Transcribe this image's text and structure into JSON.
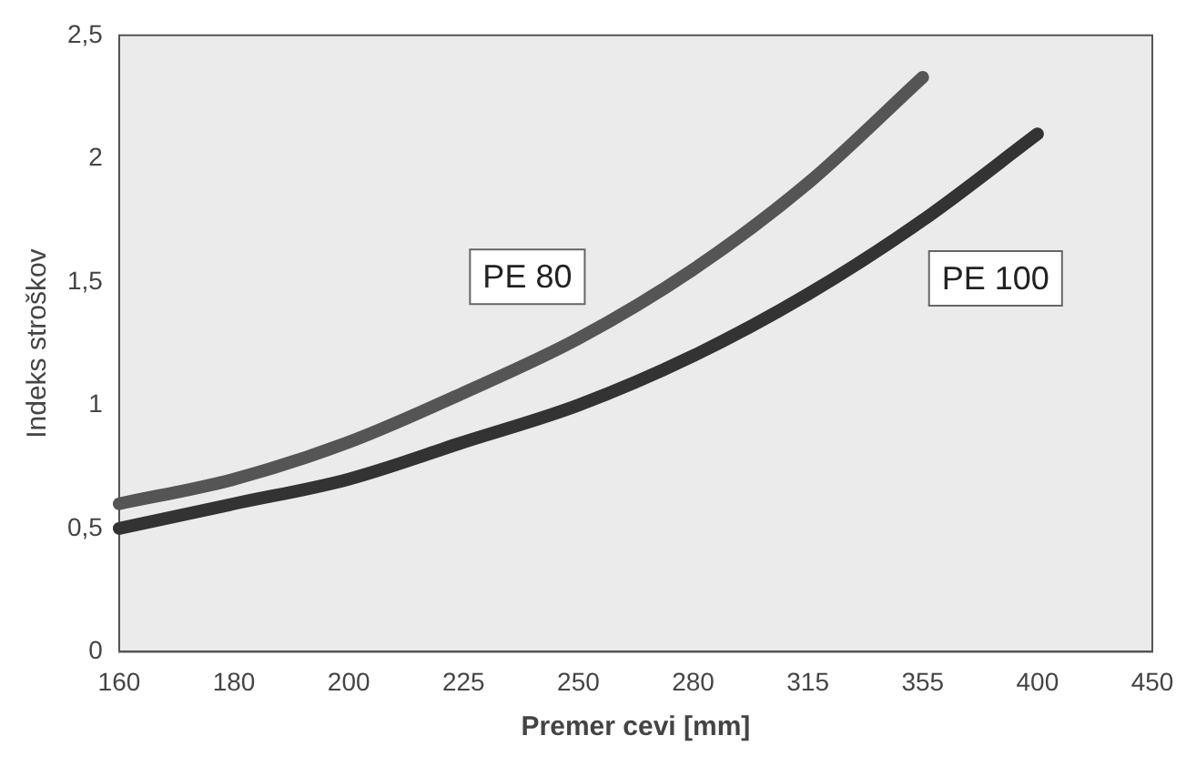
{
  "chart_data": {
    "type": "line",
    "xlabel": "Premer cevi [mm]",
    "ylabel": "Indeks stroškov",
    "categories": [
      "160",
      "180",
      "200",
      "225",
      "250",
      "280",
      "315",
      "355",
      "400",
      "450"
    ],
    "series": [
      {
        "name": "PE 80",
        "color": "#555555",
        "values": [
          0.6,
          0.7,
          0.85,
          1.05,
          1.27,
          1.55,
          1.9,
          2.33,
          null,
          null
        ]
      },
      {
        "name": "PE 100",
        "color": "#333333",
        "values": [
          0.5,
          0.6,
          0.7,
          0.85,
          1.0,
          1.2,
          1.45,
          1.75,
          2.1,
          null
        ]
      }
    ],
    "ylim": [
      0,
      2.5
    ],
    "yticks": [
      0,
      {
        "value": 0.5,
        "label": "0,5"
      },
      1,
      {
        "value": 1.5,
        "label": "1,5"
      },
      2,
      {
        "value": 2.5,
        "label": "2,5"
      }
    ],
    "grid": false,
    "legend": false,
    "marker": "none",
    "line_style": "solid"
  }
}
